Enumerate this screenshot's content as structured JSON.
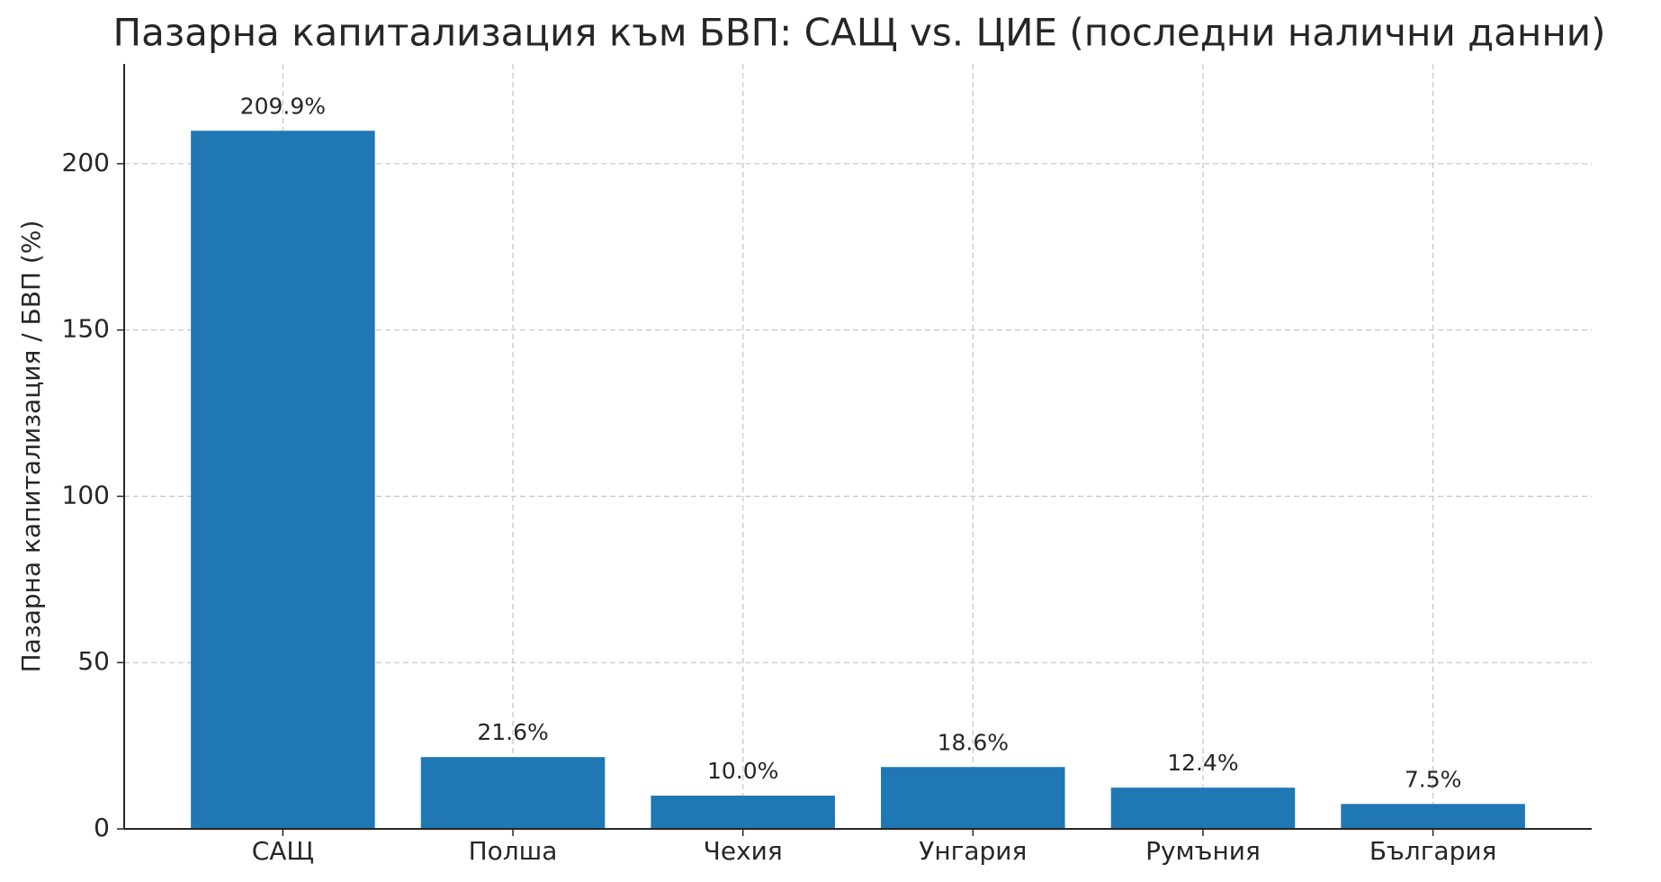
{
  "chart_data": {
    "type": "bar",
    "title": "Пазарна капитализация към БВП: САЩ vs. ЦИЕ (последни налични данни)",
    "y_label": "Пазарна капитализация / БВП (%)",
    "categories": [
      "САЩ",
      "Полша",
      "Чехия",
      "Унгария",
      "Румъния",
      "България"
    ],
    "values": [
      209.9,
      21.6,
      10.0,
      18.6,
      12.4,
      7.5
    ],
    "value_labels": [
      "209.9%",
      "21.6%",
      "10.0%",
      "18.6%",
      "12.4%",
      "7.5%"
    ],
    "color": "#1f77b4",
    "ylim": [
      0,
      230
    ],
    "yticks": [
      0,
      50,
      100,
      150,
      200
    ],
    "grid": true
  }
}
